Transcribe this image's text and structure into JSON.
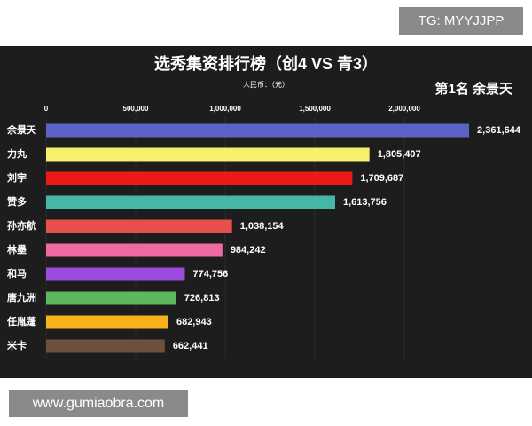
{
  "watermarks": [
    "TG: MYYJJPP",
    "www.gumiaobra.com"
  ],
  "chart_data": {
    "type": "bar",
    "orientation": "horizontal",
    "title": "选秀集资排行榜（创4 VS 青3）",
    "subtitle": "人民币：（元）",
    "annotation": "第1名 余景天",
    "categories": [
      "余景天",
      "力丸",
      "刘宇",
      "赞多",
      "孙亦航",
      "林墨",
      "和马",
      "唐九洲",
      "任胤蓬",
      "米卡"
    ],
    "values": [
      2361644,
      1805407,
      1709687,
      1613756,
      1038154,
      984242,
      774756,
      726813,
      682943,
      662441
    ],
    "value_labels": [
      "2,361,644",
      "1,805,407",
      "1,709,687",
      "1,613,756",
      "1,038,154",
      "984,242",
      "774,756",
      "726,813",
      "682,943",
      "662,441"
    ],
    "colors": [
      "#5b64c4",
      "#f6f06c",
      "#ee1a1a",
      "#46b7a6",
      "#e5504c",
      "#ef6aa2",
      "#9a4be0",
      "#5cb85c",
      "#f6b21c",
      "#6e4e3c"
    ],
    "xlim": [
      0,
      2500000
    ],
    "xticks": [
      0,
      {
        "value": 500000,
        "label": "500,000"
      },
      {
        "value": 1000000,
        "label": "1,000,000"
      },
      {
        "value": 1500000,
        "label": "1,500,000"
      },
      {
        "value": 2000000,
        "label": "2,000,000"
      }
    ],
    "grid": true
  }
}
